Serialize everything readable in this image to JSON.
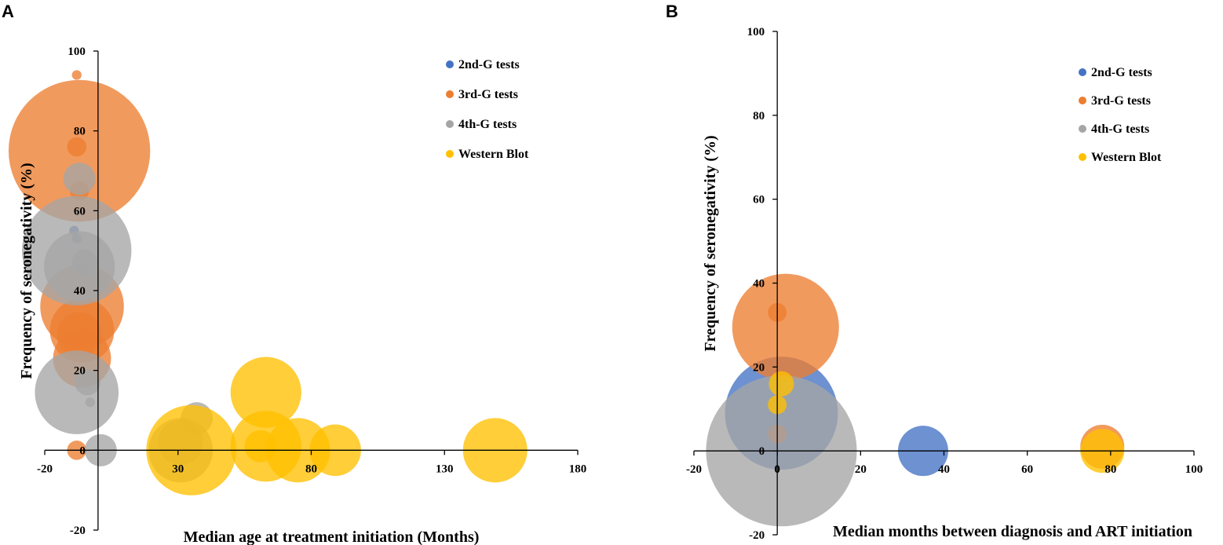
{
  "colors": {
    "2nd-G tests": "#4472C4",
    "3rd-G tests": "#ED7D31",
    "4th-G tests": "#A5A5A5",
    "Western Blot": "#FFC000"
  },
  "chart_data": [
    {
      "panel": "A",
      "type": "scatter",
      "subtype": "bubble",
      "xlabel": "Median age at treatment initiation (Months)",
      "ylabel": "Frequency of seronegativity (%)",
      "xlim": [
        -20,
        180
      ],
      "ylim": [
        -20,
        100
      ],
      "xticks": [
        "-20",
        "30",
        "80",
        "130",
        "180"
      ],
      "xtick_values": [
        -20,
        30,
        80,
        130,
        180
      ],
      "yticks": [
        "-20",
        "0",
        "20",
        "40",
        "60",
        "80",
        "100"
      ],
      "ytick_values": [
        -20,
        0,
        20,
        40,
        60,
        80,
        100
      ],
      "legend": [
        "2nd-G tests",
        "3rd-G tests",
        "4th-G tests",
        "Western Blot"
      ],
      "legend_position": "top-right",
      "series": [
        {
          "name": "2nd-G tests",
          "points": [
            {
              "x": -9,
              "y": 55,
              "size": 1.5
            },
            {
              "x": -8,
              "y": 53,
              "size": 1.5
            }
          ]
        },
        {
          "name": "3rd-G tests",
          "points": [
            {
              "x": -8,
              "y": 94,
              "size": 1.5
            },
            {
              "x": -7,
              "y": 75,
              "size": 22
            },
            {
              "x": -8,
              "y": 76,
              "size": 3
            },
            {
              "x": -7,
              "y": 65,
              "size": 3
            },
            {
              "x": -6,
              "y": 36,
              "size": 13
            },
            {
              "x": -6,
              "y": 30,
              "size": 10
            },
            {
              "x": -7,
              "y": 29,
              "size": 7
            },
            {
              "x": -6,
              "y": 23,
              "size": 9
            },
            {
              "x": -8,
              "y": 0,
              "size": 3
            }
          ]
        },
        {
          "name": "4th-G tests",
          "points": [
            {
              "x": -7,
              "y": 68,
              "size": 5
            },
            {
              "x": -8,
              "y": 50,
              "size": 17
            },
            {
              "x": -7,
              "y": 46,
              "size": 11
            },
            {
              "x": -5,
              "y": 47,
              "size": 4
            },
            {
              "x": -4,
              "y": 17,
              "size": 4
            },
            {
              "x": -3,
              "y": 12,
              "size": 1.5
            },
            {
              "x": -8,
              "y": 14.5,
              "size": 13
            },
            {
              "x": 1,
              "y": 0,
              "size": 5
            },
            {
              "x": 31,
              "y": 0,
              "size": 10
            },
            {
              "x": 31,
              "y": 2,
              "size": 7
            },
            {
              "x": 37,
              "y": 8,
              "size": 5
            }
          ]
        },
        {
          "name": "Western Blot",
          "points": [
            {
              "x": 35,
              "y": 0,
              "size": 14
            },
            {
              "x": 63,
              "y": 14.5,
              "size": 11
            },
            {
              "x": 63,
              "y": 1,
              "size": 11
            },
            {
              "x": 61,
              "y": 1,
              "size": 5
            },
            {
              "x": 75,
              "y": 0,
              "size": 10
            },
            {
              "x": 89,
              "y": 0,
              "size": 8
            },
            {
              "x": 149,
              "y": 0,
              "size": 10
            }
          ]
        }
      ]
    },
    {
      "panel": "B",
      "type": "scatter",
      "subtype": "bubble",
      "xlabel": "Median months between diagnosis and ART initiation",
      "ylabel": "Frequency of seronegativity (%)",
      "xlim": [
        -20,
        100
      ],
      "ylim": [
        -20,
        100
      ],
      "xticks": [
        "-20",
        "0",
        "20",
        "40",
        "60",
        "80",
        "100"
      ],
      "xtick_values": [
        -20,
        0,
        20,
        40,
        60,
        80,
        100
      ],
      "yticks": [
        "-20",
        "0",
        "20",
        "40",
        "60",
        "80",
        "100"
      ],
      "ytick_values": [
        -20,
        0,
        20,
        40,
        60,
        80,
        100
      ],
      "legend": [
        "2nd-G tests",
        "3rd-G tests",
        "4th-G tests",
        "Western Blot"
      ],
      "legend_position": "top-right",
      "series": [
        {
          "name": "2nd-G tests",
          "points": [
            {
              "x": 1,
              "y": 9,
              "size": 18
            },
            {
              "x": 35,
              "y": 0,
              "size": 8
            }
          ]
        },
        {
          "name": "3rd-G tests",
          "points": [
            {
              "x": 2,
              "y": 29.5,
              "size": 17
            },
            {
              "x": 0,
              "y": 33,
              "size": 3
            },
            {
              "x": 0,
              "y": 4,
              "size": 3
            },
            {
              "x": 78,
              "y": 1,
              "size": 7
            }
          ]
        },
        {
          "name": "4th-G tests",
          "points": [
            {
              "x": 1,
              "y": 0,
              "size": 24
            }
          ]
        },
        {
          "name": "Western Blot",
          "points": [
            {
              "x": 1,
              "y": 16,
              "size": 4
            },
            {
              "x": 0,
              "y": 11,
              "size": 3
            },
            {
              "x": 78,
              "y": 0,
              "size": 7
            }
          ]
        }
      ]
    }
  ]
}
